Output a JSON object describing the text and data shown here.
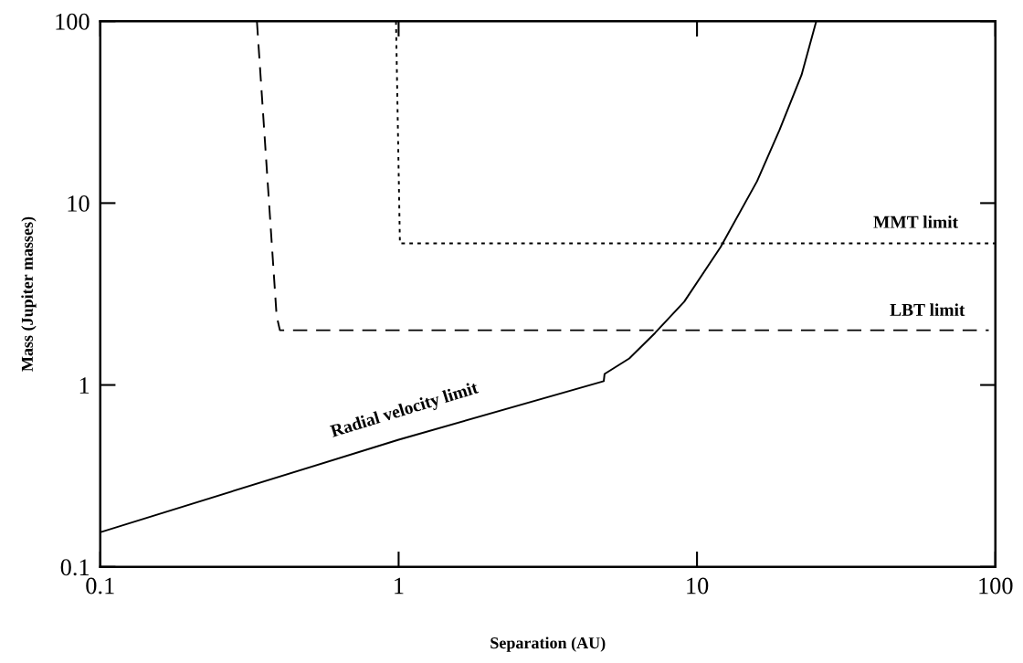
{
  "chart_data": {
    "type": "line",
    "xlabel": "Separation (AU)",
    "ylabel": "Mass (Jupiter masses)",
    "log": "xy",
    "xlim": [
      0.1,
      100
    ],
    "ylim": [
      0.1,
      100
    ],
    "xticks": [
      0.1,
      1,
      10,
      100
    ],
    "yticks": [
      0.1,
      1,
      10,
      100
    ],
    "grid": false,
    "marker": "none",
    "series": [
      {
        "name": "Radial velocity limit",
        "color": "#000000",
        "line_style": "solid",
        "x": [
          0.1,
          1,
          4.87,
          4.9,
          5.93,
          7.23,
          9.06,
          12.0,
          15.9,
          18.9,
          22.4,
          25.1
        ],
        "values": [
          0.155,
          0.5,
          1.05,
          1.15,
          1.4,
          1.93,
          2.87,
          5.74,
          13.2,
          25.2,
          50.6,
          100
        ]
      },
      {
        "name": "LBT limit",
        "color": "#000000",
        "line_style": "dashed",
        "x": [
          0.335,
          0.39,
          0.4,
          95
        ],
        "values": [
          100,
          2.4,
          2.0,
          2.0
        ]
      },
      {
        "name": "MMT limit",
        "color": "#000000",
        "line_style": "dotted",
        "x": [
          0.98,
          1.01,
          100
        ],
        "values": [
          100,
          6.0,
          6.0
        ]
      }
    ]
  }
}
